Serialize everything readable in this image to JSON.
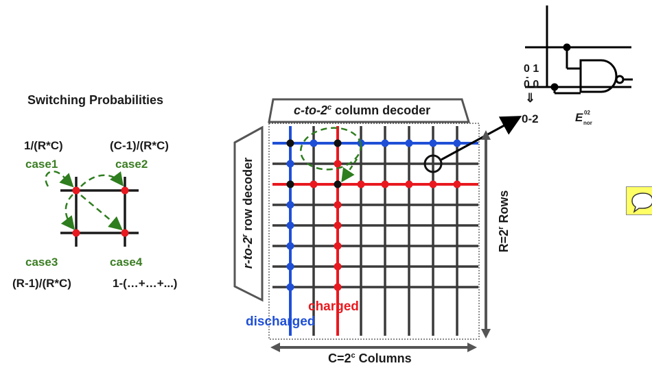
{
  "left_panel": {
    "title": "Switching Probabilities",
    "prob_case1": "1/(R*C)",
    "prob_case2": "(C-1)/(R*C)",
    "case1": "case1",
    "case2": "case2",
    "case3": "case3",
    "case4": "case4",
    "prob_case3": "(R-1)/(R*C)",
    "prob_case4": "1-(…+…+...)"
  },
  "array": {
    "column_decoder_prefix": "c-to-2",
    "column_decoder_sup": "c",
    "column_decoder_suffix": " column decoder",
    "row_decoder_prefix": "r-to-2",
    "row_decoder_sup": "r",
    "row_decoder_suffix": " row decoder",
    "charged": "charged",
    "discharged": "discharged",
    "columns_prefix": "C=2",
    "columns_sup": "c",
    "columns_suffix": " Columns",
    "rows_prefix": "R=2",
    "rows_sup": "r",
    "rows_suffix": " Rows"
  },
  "gate": {
    "line1": "0 1",
    "dash": "-",
    "line2": "0 0",
    "arrow": "⇓",
    "line3": "0-2",
    "energy_main": "E",
    "energy_sup": "02",
    "energy_sub": "nor"
  },
  "colors": {
    "charged": "#e8191f",
    "discharged": "#1f4fd6",
    "arrow_green": "#2e7d1e",
    "grid": "#3a3a3a",
    "note": "#ffff66"
  }
}
